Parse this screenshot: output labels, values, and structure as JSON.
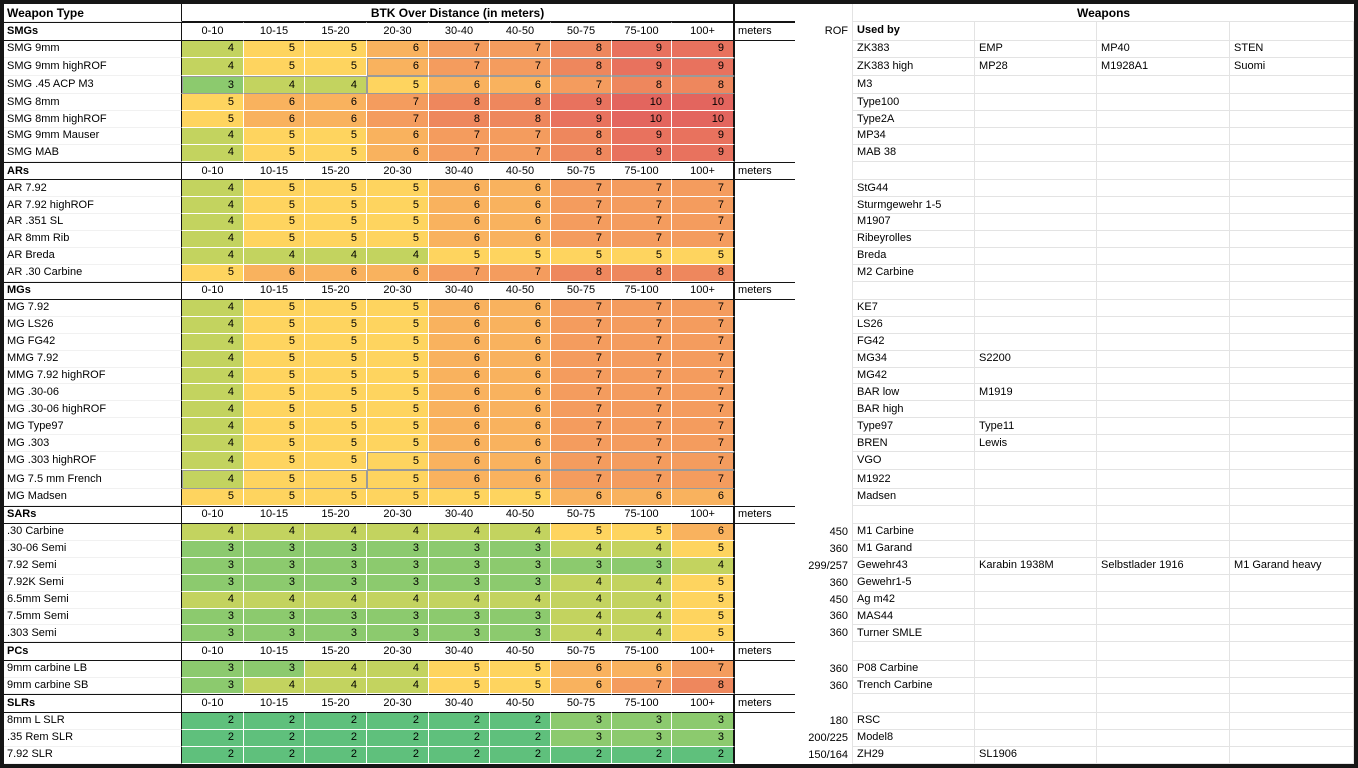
{
  "top_header": {
    "weapon_type": "Weapon Type",
    "btk_title": "BTK Over Distance (in meters)",
    "weapons_title": "Weapons"
  },
  "column_headers": {
    "distances": [
      "0-10",
      "10-15",
      "15-20",
      "20-30",
      "30-40",
      "40-50",
      "50-75",
      "75-100",
      "100+"
    ],
    "meters": "meters",
    "rof": "ROF",
    "used_by": "Used by"
  },
  "btk_colors": {
    "2": "#5fc07c",
    "3": "#8cca6e",
    "4": "#c3d35f",
    "5": "#fed45f",
    "6": "#f9b25e",
    "7": "#f49c5e",
    "8": "#ee875d",
    "9": "#e8725e",
    "10": "#e3655e"
  },
  "sections": [
    {
      "name": "SMGs",
      "show_rof_header": true,
      "show_used_by": true,
      "rows": [
        {
          "name": "SMG 9mm",
          "btk": [
            4,
            5,
            5,
            6,
            7,
            7,
            8,
            9,
            9
          ],
          "rof": "",
          "weapons": [
            "ZK383",
            "EMP",
            "MP40",
            "STEN"
          ]
        },
        {
          "name": "SMG 9mm highROF",
          "btk": [
            4,
            5,
            5,
            6,
            7,
            7,
            8,
            9,
            9
          ],
          "rof": "",
          "weapons": [
            "ZK383 high",
            "MP28",
            "M1928A1",
            "Suomi"
          ],
          "outlines": [
            [
              3,
              8
            ]
          ]
        },
        {
          "name": "SMG .45 ACP M3",
          "btk": [
            3,
            4,
            4,
            5,
            6,
            6,
            7,
            8,
            8
          ],
          "rof": "",
          "weapons": [
            "M3",
            "",
            "",
            ""
          ],
          "outlines": [
            [
              0,
              2
            ],
            [
              3,
              8
            ]
          ]
        },
        {
          "name": "SMG 8mm",
          "btk": [
            5,
            6,
            6,
            7,
            8,
            8,
            9,
            10,
            10
          ],
          "rof": "",
          "weapons": [
            "Type100",
            "",
            "",
            ""
          ]
        },
        {
          "name": "SMG 8mm highROF",
          "btk": [
            5,
            6,
            6,
            7,
            8,
            8,
            9,
            10,
            10
          ],
          "rof": "",
          "weapons": [
            "Type2A",
            "",
            "",
            ""
          ]
        },
        {
          "name": "SMG 9mm Mauser",
          "btk": [
            4,
            5,
            5,
            6,
            7,
            7,
            8,
            9,
            9
          ],
          "rof": "",
          "weapons": [
            "MP34",
            "",
            "",
            ""
          ]
        },
        {
          "name": "SMG MAB",
          "btk": [
            4,
            5,
            5,
            6,
            7,
            7,
            8,
            9,
            9
          ],
          "rof": "",
          "weapons": [
            "MAB 38",
            "",
            "",
            ""
          ]
        }
      ]
    },
    {
      "name": "ARs",
      "show_rof_header": false,
      "show_used_by": false,
      "rows": [
        {
          "name": "AR 7.92",
          "btk": [
            4,
            5,
            5,
            5,
            6,
            6,
            7,
            7,
            7
          ],
          "rof": "",
          "weapons": [
            "StG44",
            "",
            "",
            ""
          ]
        },
        {
          "name": "AR 7.92 highROF",
          "btk": [
            4,
            5,
            5,
            5,
            6,
            6,
            7,
            7,
            7
          ],
          "rof": "",
          "weapons": [
            "Sturmgewehr 1-5",
            "",
            "",
            ""
          ]
        },
        {
          "name": "AR .351 SL",
          "btk": [
            4,
            5,
            5,
            5,
            6,
            6,
            7,
            7,
            7
          ],
          "rof": "",
          "weapons": [
            "M1907",
            "",
            "",
            ""
          ]
        },
        {
          "name": "AR 8mm Rib",
          "btk": [
            4,
            5,
            5,
            5,
            6,
            6,
            7,
            7,
            7
          ],
          "rof": "",
          "weapons": [
            "Ribeyrolles",
            "",
            "",
            ""
          ]
        },
        {
          "name": "AR Breda",
          "btk": [
            4,
            4,
            4,
            4,
            5,
            5,
            5,
            5,
            5
          ],
          "rof": "",
          "weapons": [
            "Breda",
            "",
            "",
            ""
          ]
        },
        {
          "name": "AR .30 Carbine",
          "btk": [
            5,
            6,
            6,
            6,
            7,
            7,
            8,
            8,
            8
          ],
          "rof": "",
          "weapons": [
            "M2 Carbine",
            "",
            "",
            ""
          ]
        }
      ]
    },
    {
      "name": "MGs",
      "show_rof_header": false,
      "show_used_by": false,
      "rows": [
        {
          "name": "MG 7.92",
          "btk": [
            4,
            5,
            5,
            5,
            6,
            6,
            7,
            7,
            7
          ],
          "rof": "",
          "weapons": [
            "KE7",
            "",
            "",
            ""
          ]
        },
        {
          "name": "MG LS26",
          "btk": [
            4,
            5,
            5,
            5,
            6,
            6,
            7,
            7,
            7
          ],
          "rof": "",
          "weapons": [
            "LS26",
            "",
            "",
            ""
          ]
        },
        {
          "name": "MG FG42",
          "btk": [
            4,
            5,
            5,
            5,
            6,
            6,
            7,
            7,
            7
          ],
          "rof": "",
          "weapons": [
            "FG42",
            "",
            "",
            ""
          ]
        },
        {
          "name": "MMG 7.92",
          "btk": [
            4,
            5,
            5,
            5,
            6,
            6,
            7,
            7,
            7
          ],
          "rof": "",
          "weapons": [
            "MG34",
            "S2200",
            "",
            ""
          ]
        },
        {
          "name": "MMG 7.92 highROF",
          "btk": [
            4,
            5,
            5,
            5,
            6,
            6,
            7,
            7,
            7
          ],
          "rof": "",
          "weapons": [
            "MG42",
            "",
            "",
            ""
          ]
        },
        {
          "name": "MG .30-06",
          "btk": [
            4,
            5,
            5,
            5,
            6,
            6,
            7,
            7,
            7
          ],
          "rof": "",
          "weapons": [
            "BAR low",
            "M1919",
            "",
            ""
          ]
        },
        {
          "name": "MG .30-06 highROF",
          "btk": [
            4,
            5,
            5,
            5,
            6,
            6,
            7,
            7,
            7
          ],
          "rof": "",
          "weapons": [
            "BAR high",
            "",
            "",
            ""
          ]
        },
        {
          "name": "MG Type97",
          "btk": [
            4,
            5,
            5,
            5,
            6,
            6,
            7,
            7,
            7
          ],
          "rof": "",
          "weapons": [
            "Type97",
            "Type11",
            "",
            ""
          ]
        },
        {
          "name": "MG .303",
          "btk": [
            4,
            5,
            5,
            5,
            6,
            6,
            7,
            7,
            7
          ],
          "rof": "",
          "weapons": [
            "BREN",
            "Lewis",
            "",
            ""
          ]
        },
        {
          "name": "MG .303 highROF",
          "btk": [
            4,
            5,
            5,
            5,
            6,
            6,
            7,
            7,
            7
          ],
          "rof": "",
          "weapons": [
            "VGO",
            "",
            "",
            ""
          ],
          "outlines": [
            [
              3,
              8
            ]
          ]
        },
        {
          "name": "MG 7.5 mm French",
          "btk": [
            4,
            5,
            5,
            5,
            6,
            6,
            7,
            7,
            7
          ],
          "rof": "",
          "weapons": [
            "M1922",
            "",
            "",
            ""
          ],
          "outlines": [
            [
              0,
              2
            ],
            [
              3,
              8
            ]
          ]
        },
        {
          "name": "MG Madsen",
          "btk": [
            5,
            5,
            5,
            5,
            5,
            5,
            6,
            6,
            6
          ],
          "rof": "",
          "weapons": [
            "Madsen",
            "",
            "",
            ""
          ]
        }
      ]
    },
    {
      "name": "SARs",
      "show_rof_header": false,
      "show_used_by": false,
      "rows": [
        {
          "name": ".30 Carbine",
          "btk": [
            4,
            4,
            4,
            4,
            4,
            4,
            5,
            5,
            6
          ],
          "rof": "450",
          "weapons": [
            "M1 Carbine",
            "",
            "",
            ""
          ]
        },
        {
          "name": ".30-06 Semi",
          "btk": [
            3,
            3,
            3,
            3,
            3,
            3,
            4,
            4,
            5
          ],
          "rof": "360",
          "weapons": [
            "M1 Garand",
            "",
            "",
            ""
          ]
        },
        {
          "name": "7.92 Semi",
          "btk": [
            3,
            3,
            3,
            3,
            3,
            3,
            3,
            3,
            4
          ],
          "rof": "299/257",
          "weapons": [
            "Gewehr43",
            "Karabin 1938M",
            "Selbstlader 1916",
            "M1 Garand heavy"
          ]
        },
        {
          "name": "7.92K Semi",
          "btk": [
            3,
            3,
            3,
            3,
            3,
            3,
            4,
            4,
            5
          ],
          "rof": "360",
          "weapons": [
            "Gewehr1-5",
            "",
            "",
            ""
          ]
        },
        {
          "name": "6.5mm Semi",
          "btk": [
            4,
            4,
            4,
            4,
            4,
            4,
            4,
            4,
            5
          ],
          "rof": "450",
          "weapons": [
            "Ag m42",
            "",
            "",
            ""
          ]
        },
        {
          "name": "7.5mm Semi",
          "btk": [
            3,
            3,
            3,
            3,
            3,
            3,
            4,
            4,
            5
          ],
          "rof": "360",
          "weapons": [
            "MAS44",
            "",
            "",
            ""
          ]
        },
        {
          "name": ".303 Semi",
          "btk": [
            3,
            3,
            3,
            3,
            3,
            3,
            4,
            4,
            5
          ],
          "rof": "360",
          "weapons": [
            "Turner SMLE",
            "",
            "",
            ""
          ]
        }
      ]
    },
    {
      "name": "PCs",
      "show_rof_header": false,
      "show_used_by": false,
      "rows": [
        {
          "name": "9mm carbine LB",
          "btk": [
            3,
            3,
            4,
            4,
            5,
            5,
            6,
            6,
            7
          ],
          "rof": "360",
          "weapons": [
            "P08 Carbine",
            "",
            "",
            ""
          ]
        },
        {
          "name": "9mm carbine SB",
          "btk": [
            3,
            4,
            4,
            4,
            5,
            5,
            6,
            7,
            8
          ],
          "rof": "360",
          "weapons": [
            "Trench Carbine",
            "",
            "",
            ""
          ]
        }
      ]
    },
    {
      "name": "SLRs",
      "show_rof_header": false,
      "show_used_by": false,
      "rows": [
        {
          "name": "8mm L SLR",
          "btk": [
            2,
            2,
            2,
            2,
            2,
            2,
            3,
            3,
            3
          ],
          "rof": "180",
          "weapons": [
            "RSC",
            "",
            "",
            ""
          ]
        },
        {
          "name": ".35 Rem SLR",
          "btk": [
            2,
            2,
            2,
            2,
            2,
            2,
            3,
            3,
            3
          ],
          "rof": "200/225",
          "weapons": [
            "Model8",
            "",
            "",
            ""
          ]
        },
        {
          "name": "7.92 SLR",
          "btk": [
            2,
            2,
            2,
            2,
            2,
            2,
            2,
            2,
            2
          ],
          "rof": "150/164",
          "weapons": [
            "ZH29",
            "SL1906",
            "",
            ""
          ]
        }
      ]
    }
  ]
}
